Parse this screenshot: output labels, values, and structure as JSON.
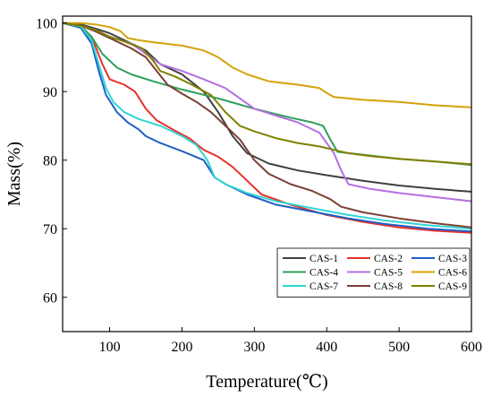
{
  "chart_data": {
    "type": "line",
    "title": "",
    "xlabel": "Temperature(℃)",
    "ylabel": "Mass(%)",
    "xlim": [
      35,
      600
    ],
    "ylim": [
      55,
      101
    ],
    "x_ticks": [
      100,
      200,
      300,
      400,
      500,
      600
    ],
    "y_ticks": [
      60,
      70,
      80,
      90,
      100
    ],
    "grid": false,
    "legend_position": "bottom-right",
    "legend_columns": 3,
    "series": [
      {
        "name": "CAS-1",
        "color": "#404040",
        "points": [
          [
            35,
            100
          ],
          [
            60,
            99.8
          ],
          [
            80,
            99.2
          ],
          [
            100,
            98.5
          ],
          [
            120,
            97.5
          ],
          [
            150,
            96
          ],
          [
            170,
            94
          ],
          [
            200,
            92.5
          ],
          [
            230,
            90
          ],
          [
            250,
            87
          ],
          [
            270,
            83.5
          ],
          [
            290,
            81
          ],
          [
            320,
            79.5
          ],
          [
            360,
            78.5
          ],
          [
            400,
            77.8
          ],
          [
            450,
            77
          ],
          [
            500,
            76.3
          ],
          [
            550,
            75.8
          ],
          [
            600,
            75.4
          ]
        ]
      },
      {
        "name": "CAS-2",
        "color": "#e8312a",
        "points": [
          [
            35,
            100
          ],
          [
            60,
            99.6
          ],
          [
            75,
            98
          ],
          [
            90,
            94
          ],
          [
            100,
            91.8
          ],
          [
            120,
            91
          ],
          [
            135,
            90
          ],
          [
            150,
            87.5
          ],
          [
            165,
            85.8
          ],
          [
            190,
            84.3
          ],
          [
            210,
            83.2
          ],
          [
            230,
            81.5
          ],
          [
            250,
            80.5
          ],
          [
            270,
            79
          ],
          [
            290,
            77
          ],
          [
            310,
            75
          ],
          [
            350,
            73.5
          ],
          [
            400,
            72
          ],
          [
            450,
            71
          ],
          [
            500,
            70.2
          ],
          [
            550,
            69.7
          ],
          [
            600,
            69.4
          ]
        ]
      },
      {
        "name": "CAS-3",
        "color": "#1f5fc6",
        "points": [
          [
            35,
            100
          ],
          [
            60,
            99.3
          ],
          [
            75,
            97
          ],
          [
            85,
            93
          ],
          [
            95,
            89.5
          ],
          [
            110,
            87
          ],
          [
            125,
            85.5
          ],
          [
            140,
            84.5
          ],
          [
            150,
            83.5
          ],
          [
            170,
            82.5
          ],
          [
            200,
            81.3
          ],
          [
            230,
            80
          ],
          [
            245,
            77.5
          ],
          [
            260,
            76.5
          ],
          [
            290,
            75
          ],
          [
            330,
            73.5
          ],
          [
            380,
            72.5
          ],
          [
            430,
            71.5
          ],
          [
            480,
            70.7
          ],
          [
            540,
            70
          ],
          [
            600,
            69.6
          ]
        ]
      },
      {
        "name": "CAS-4",
        "color": "#2ca05a",
        "points": [
          [
            35,
            100
          ],
          [
            60,
            99.5
          ],
          [
            75,
            98
          ],
          [
            90,
            95.5
          ],
          [
            110,
            93.5
          ],
          [
            130,
            92.5
          ],
          [
            160,
            91.5
          ],
          [
            200,
            90.3
          ],
          [
            250,
            89
          ],
          [
            300,
            87.5
          ],
          [
            350,
            86.2
          ],
          [
            380,
            85.5
          ],
          [
            395,
            85
          ],
          [
            405,
            83
          ],
          [
            415,
            81.2
          ],
          [
            450,
            80.8
          ],
          [
            500,
            80.2
          ],
          [
            550,
            79.8
          ],
          [
            600,
            79.3
          ]
        ]
      },
      {
        "name": "CAS-5",
        "color": "#b46fe0",
        "points": [
          [
            35,
            100
          ],
          [
            60,
            99.6
          ],
          [
            80,
            99
          ],
          [
            100,
            98
          ],
          [
            130,
            97
          ],
          [
            150,
            95.5
          ],
          [
            170,
            94
          ],
          [
            200,
            93
          ],
          [
            230,
            91.8
          ],
          [
            260,
            90.5
          ],
          [
            280,
            89
          ],
          [
            300,
            87.5
          ],
          [
            330,
            86.5
          ],
          [
            360,
            85.5
          ],
          [
            390,
            84
          ],
          [
            410,
            81
          ],
          [
            420,
            78.5
          ],
          [
            430,
            76.5
          ],
          [
            460,
            75.8
          ],
          [
            500,
            75.2
          ],
          [
            550,
            74.6
          ],
          [
            600,
            74
          ]
        ]
      },
      {
        "name": "CAS-6",
        "color": "#d4a20a",
        "points": [
          [
            35,
            100
          ],
          [
            60,
            100
          ],
          [
            80,
            99.8
          ],
          [
            100,
            99.4
          ],
          [
            115,
            98.8
          ],
          [
            125,
            97.8
          ],
          [
            140,
            97.5
          ],
          [
            160,
            97.2
          ],
          [
            200,
            96.7
          ],
          [
            230,
            96
          ],
          [
            250,
            95
          ],
          [
            270,
            93.5
          ],
          [
            290,
            92.5
          ],
          [
            320,
            91.5
          ],
          [
            360,
            91
          ],
          [
            390,
            90.5
          ],
          [
            400,
            89.8
          ],
          [
            410,
            89.2
          ],
          [
            450,
            88.8
          ],
          [
            500,
            88.5
          ],
          [
            550,
            88
          ],
          [
            600,
            87.7
          ]
        ]
      },
      {
        "name": "CAS-7",
        "color": "#30d5d5",
        "points": [
          [
            35,
            100
          ],
          [
            60,
            99.5
          ],
          [
            75,
            97.5
          ],
          [
            85,
            94
          ],
          [
            95,
            90.5
          ],
          [
            105,
            88.5
          ],
          [
            120,
            87
          ],
          [
            140,
            86
          ],
          [
            170,
            85
          ],
          [
            200,
            83.5
          ],
          [
            220,
            82.2
          ],
          [
            235,
            80
          ],
          [
            245,
            77.5
          ],
          [
            260,
            76.5
          ],
          [
            290,
            75.2
          ],
          [
            330,
            74
          ],
          [
            380,
            73
          ],
          [
            430,
            72
          ],
          [
            480,
            71.2
          ],
          [
            540,
            70.5
          ],
          [
            600,
            70
          ]
        ]
      },
      {
        "name": "CAS-8",
        "color": "#7b3f35",
        "points": [
          [
            35,
            100
          ],
          [
            60,
            99.6
          ],
          [
            80,
            98.8
          ],
          [
            100,
            97.8
          ],
          [
            130,
            96.3
          ],
          [
            150,
            95
          ],
          [
            165,
            93
          ],
          [
            180,
            91
          ],
          [
            200,
            89.7
          ],
          [
            220,
            88.5
          ],
          [
            240,
            87
          ],
          [
            260,
            85
          ],
          [
            280,
            83
          ],
          [
            300,
            80
          ],
          [
            320,
            78
          ],
          [
            350,
            76.5
          ],
          [
            380,
            75.5
          ],
          [
            405,
            74.3
          ],
          [
            420,
            73.2
          ],
          [
            450,
            72.4
          ],
          [
            500,
            71.5
          ],
          [
            550,
            70.8
          ],
          [
            600,
            70.2
          ]
        ]
      },
      {
        "name": "CAS-9",
        "color": "#808000",
        "points": [
          [
            35,
            100
          ],
          [
            60,
            99.6
          ],
          [
            80,
            99
          ],
          [
            100,
            98
          ],
          [
            120,
            97.3
          ],
          [
            145,
            96.3
          ],
          [
            160,
            94.5
          ],
          [
            170,
            93
          ],
          [
            190,
            92.2
          ],
          [
            210,
            91.2
          ],
          [
            240,
            89.5
          ],
          [
            260,
            87
          ],
          [
            280,
            85
          ],
          [
            300,
            84.2
          ],
          [
            330,
            83.2
          ],
          [
            360,
            82.5
          ],
          [
            390,
            82
          ],
          [
            410,
            81.5
          ],
          [
            430,
            81
          ],
          [
            460,
            80.6
          ],
          [
            500,
            80.2
          ],
          [
            550,
            79.8
          ],
          [
            600,
            79.4
          ]
        ]
      }
    ]
  }
}
